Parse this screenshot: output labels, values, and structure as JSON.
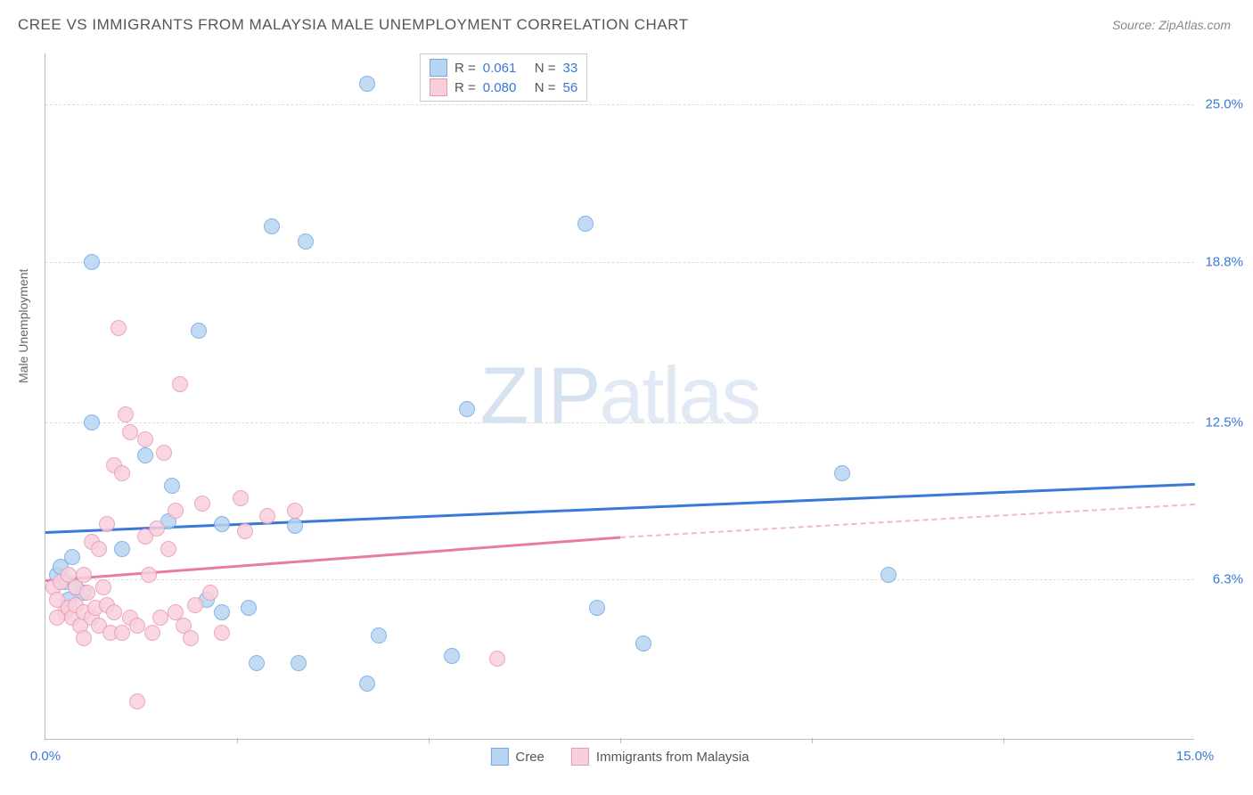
{
  "title": "CREE VS IMMIGRANTS FROM MALAYSIA MALE UNEMPLOYMENT CORRELATION CHART",
  "source": "Source: ZipAtlas.com",
  "ylabel": "Male Unemployment",
  "watermark_zip": "ZIP",
  "watermark_atlas": "atlas",
  "chart": {
    "type": "scatter",
    "background_color": "#ffffff",
    "grid_color": "#dddddd",
    "axis_color": "#bbbbbb",
    "xlim": [
      0,
      15
    ],
    "ylim": [
      0,
      27
    ],
    "xticks": [
      {
        "pos": 0,
        "label": "0.0%",
        "color": "#3a78d8"
      },
      {
        "pos": 15,
        "label": "15.0%",
        "color": "#3a78d8"
      }
    ],
    "xtick_marks": [
      2.5,
      5.0,
      7.5,
      10.0,
      12.5
    ],
    "yticks": [
      {
        "pos": 6.3,
        "label": "6.3%",
        "color": "#3a78d8"
      },
      {
        "pos": 12.5,
        "label": "12.5%",
        "color": "#3a78d8"
      },
      {
        "pos": 18.8,
        "label": "18.8%",
        "color": "#3a78d8"
      },
      {
        "pos": 25.0,
        "label": "25.0%",
        "color": "#3a78d8"
      }
    ],
    "point_radius": 9,
    "series": [
      {
        "name": "Cree",
        "color_fill": "#b8d4f0",
        "color_stroke": "#6fa8e8",
        "r_value": "0.061",
        "n_value": "33",
        "trend": {
          "y_start": 8.2,
          "y_end": 10.1,
          "x_start": 0,
          "x_end": 15
        },
        "points": [
          [
            0.15,
            6.5
          ],
          [
            0.2,
            6.8
          ],
          [
            0.25,
            6.2
          ],
          [
            0.3,
            5.5
          ],
          [
            0.35,
            7.2
          ],
          [
            0.6,
            18.8
          ],
          [
            0.6,
            12.5
          ],
          [
            1.3,
            11.2
          ],
          [
            1.65,
            10.0
          ],
          [
            1.6,
            8.6
          ],
          [
            2.0,
            16.1
          ],
          [
            2.1,
            5.5
          ],
          [
            2.3,
            5.0
          ],
          [
            2.3,
            8.5
          ],
          [
            2.65,
            5.2
          ],
          [
            2.95,
            20.2
          ],
          [
            2.75,
            3.0
          ],
          [
            3.25,
            8.4
          ],
          [
            3.4,
            19.6
          ],
          [
            3.3,
            3.0
          ],
          [
            4.2,
            25.8
          ],
          [
            4.35,
            4.1
          ],
          [
            4.2,
            2.2
          ],
          [
            5.5,
            13.0
          ],
          [
            5.3,
            3.3
          ],
          [
            7.2,
            5.2
          ],
          [
            7.05,
            20.3
          ],
          [
            7.8,
            3.8
          ],
          [
            10.4,
            10.5
          ],
          [
            11.0,
            6.5
          ],
          [
            0.4,
            6.0
          ],
          [
            0.5,
            5.8
          ],
          [
            1.0,
            7.5
          ]
        ]
      },
      {
        "name": "Immigrants from Malaysia",
        "color_fill": "#f8d0dc",
        "color_stroke": "#e89ab5",
        "r_value": "0.080",
        "n_value": "56",
        "trend": {
          "y_start": 6.3,
          "y_end": 8.0,
          "x_start": 0,
          "x_end": 7.5
        },
        "trend_dash": {
          "y_start": 8.0,
          "y_end": 9.3,
          "x_start": 7.5,
          "x_end": 15
        },
        "points": [
          [
            0.1,
            6.0
          ],
          [
            0.15,
            5.5
          ],
          [
            0.2,
            6.2
          ],
          [
            0.25,
            5.0
          ],
          [
            0.3,
            6.5
          ],
          [
            0.3,
            5.2
          ],
          [
            0.35,
            4.8
          ],
          [
            0.4,
            6.0
          ],
          [
            0.4,
            5.3
          ],
          [
            0.45,
            4.5
          ],
          [
            0.5,
            6.5
          ],
          [
            0.5,
            5.0
          ],
          [
            0.55,
            5.8
          ],
          [
            0.6,
            4.8
          ],
          [
            0.6,
            7.8
          ],
          [
            0.65,
            5.2
          ],
          [
            0.7,
            4.5
          ],
          [
            0.7,
            7.5
          ],
          [
            0.75,
            6.0
          ],
          [
            0.8,
            5.3
          ],
          [
            0.8,
            8.5
          ],
          [
            0.85,
            4.2
          ],
          [
            0.9,
            10.8
          ],
          [
            0.9,
            5.0
          ],
          [
            0.95,
            16.2
          ],
          [
            1.0,
            4.2
          ],
          [
            1.0,
            10.5
          ],
          [
            1.05,
            12.8
          ],
          [
            1.1,
            4.8
          ],
          [
            1.1,
            12.1
          ],
          [
            1.2,
            1.5
          ],
          [
            1.2,
            4.5
          ],
          [
            1.3,
            8.0
          ],
          [
            1.3,
            11.8
          ],
          [
            1.35,
            6.5
          ],
          [
            1.4,
            4.2
          ],
          [
            1.45,
            8.3
          ],
          [
            1.5,
            4.8
          ],
          [
            1.55,
            11.3
          ],
          [
            1.6,
            7.5
          ],
          [
            1.7,
            5.0
          ],
          [
            1.7,
            9.0
          ],
          [
            1.75,
            14.0
          ],
          [
            1.8,
            4.5
          ],
          [
            1.9,
            4.0
          ],
          [
            1.95,
            5.3
          ],
          [
            2.05,
            9.3
          ],
          [
            2.15,
            5.8
          ],
          [
            2.3,
            4.2
          ],
          [
            2.55,
            9.5
          ],
          [
            2.6,
            8.2
          ],
          [
            2.9,
            8.8
          ],
          [
            3.25,
            9.0
          ],
          [
            5.9,
            3.2
          ],
          [
            0.15,
            4.8
          ],
          [
            0.5,
            4.0
          ]
        ]
      }
    ]
  },
  "legend_stats": {
    "rows": [
      {
        "swatch_fill": "#b8d4f0",
        "swatch_stroke": "#6fa8e8",
        "r": "0.061",
        "n": "33"
      },
      {
        "swatch_fill": "#f8d0dc",
        "swatch_stroke": "#e89ab5",
        "r": "0.080",
        "n": "56"
      }
    ],
    "r_label": "R =",
    "n_label": "N ="
  },
  "bottom_legend": [
    {
      "swatch_fill": "#b8d4f0",
      "swatch_stroke": "#6fa8e8",
      "label": "Cree"
    },
    {
      "swatch_fill": "#f8d0dc",
      "swatch_stroke": "#e89ab5",
      "label": "Immigrants from Malaysia"
    }
  ]
}
